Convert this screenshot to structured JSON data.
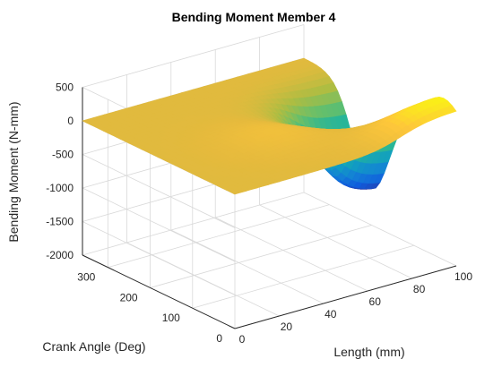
{
  "chart_data": {
    "type": "surface",
    "title": "Bending Moment Member 4",
    "xlabel": "Length (mm)",
    "ylabel": "Crank Angle (Deg)",
    "zlabel": "Bending Moment (N-mm)",
    "xlim": [
      0,
      100
    ],
    "ylim": [
      0,
      360
    ],
    "zlim": [
      -2000,
      500
    ],
    "xticks": [
      "0",
      "20",
      "40",
      "60",
      "80",
      "100"
    ],
    "yticks": [
      "0",
      "100",
      "200",
      "300"
    ],
    "zticks": [
      "500",
      "0",
      "-500",
      "-1000",
      "-1500",
      "-2000"
    ],
    "grid": true,
    "colormap": "parula",
    "surface_summary": {
      "baseline_value": 0,
      "peak_positive_approx": 400,
      "trough_approx": -1500,
      "trough_near_length_mm": 100,
      "trough_near_crank_angle_deg": 200
    }
  }
}
